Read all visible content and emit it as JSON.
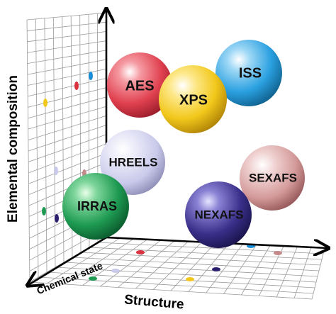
{
  "axes": {
    "vertical_label": "Elemental composition",
    "horizontal_label": "Structure",
    "depth_label": "Chemical state"
  },
  "techniques": [
    {
      "id": "aes",
      "label": "AES",
      "color": "#e0404f"
    },
    {
      "id": "iss",
      "label": "ISS",
      "color": "#2aa0e0"
    },
    {
      "id": "xps",
      "label": "XPS",
      "color": "#f2c81c"
    },
    {
      "id": "hreels",
      "label": "HREELS",
      "color": "#c9c9ea"
    },
    {
      "id": "sexafs",
      "label": "SEXAFS",
      "color": "#d49a9a"
    },
    {
      "id": "irras",
      "label": "IRRAS",
      "color": "#1e9a52"
    },
    {
      "id": "nexafs",
      "label": "NEXAFS",
      "color": "#3a2f8a"
    }
  ]
}
